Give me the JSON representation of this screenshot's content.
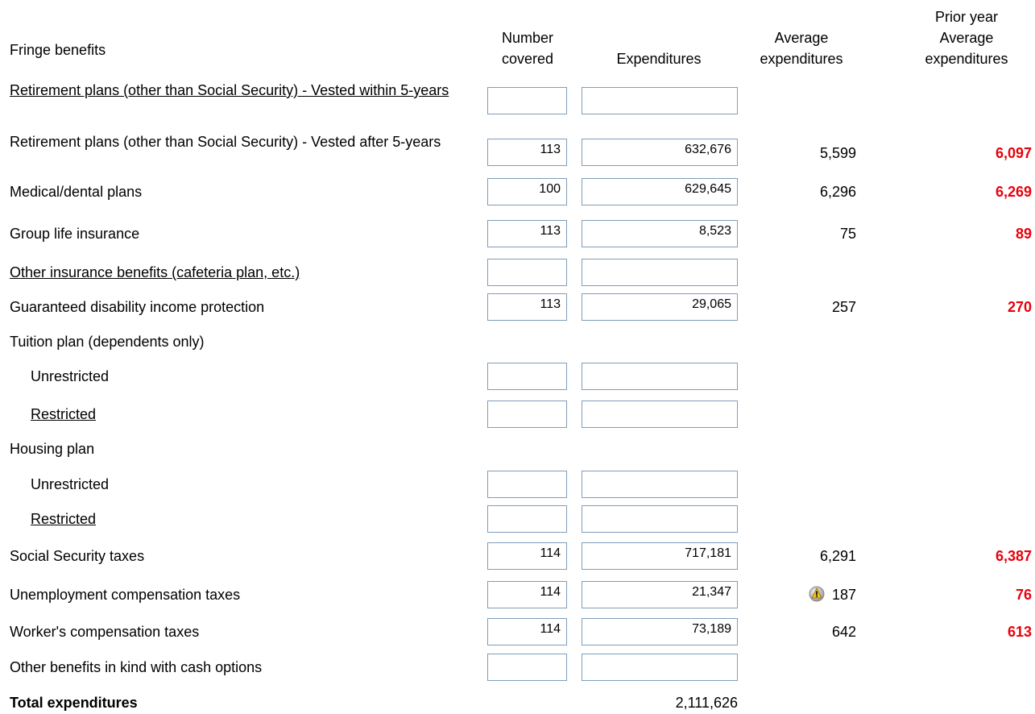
{
  "header": {
    "label": "Fringe benefits",
    "columns": [
      "Number covered",
      "Expenditures",
      "Average expenditures",
      "Prior year Average expenditures"
    ]
  },
  "rows": [
    {
      "label": "Retirement plans (other than Social Security) - Vested within 5-years"
    },
    {
      "label": "Retirement plans (other than Social Security) - Vested after 5-years",
      "number_covered": "113",
      "expenditures": "632,676",
      "average": "5,599",
      "prior_year": "6,097"
    },
    {
      "label": "Medical/dental plans",
      "number_covered": "100",
      "expenditures": "629,645",
      "average": "6,296",
      "prior_year": "6,269"
    },
    {
      "label": "Group life insurance",
      "number_covered": "113",
      "expenditures": "8,523",
      "average": "75",
      "prior_year": "89"
    },
    {
      "label": "Other insurance benefits (cafeteria plan, etc.)"
    },
    {
      "label": "Guaranteed disability income protection",
      "number_covered": "113",
      "expenditures": "29,065",
      "average": "257",
      "prior_year": "270"
    },
    {
      "label": "Tuition plan (dependents only)"
    },
    {
      "label": "Unrestricted"
    },
    {
      "label": "Restricted"
    },
    {
      "label": "Housing plan"
    },
    {
      "label": "Unrestricted"
    },
    {
      "label": "Restricted"
    },
    {
      "label": "Social Security taxes",
      "number_covered": "114",
      "expenditures": "717,181",
      "average": "6,291",
      "prior_year": "6,387"
    },
    {
      "label": "Unemployment compensation taxes",
      "number_covered": "114",
      "expenditures": "21,347",
      "average": "187",
      "prior_year": "76"
    },
    {
      "label": "Worker's compensation taxes",
      "number_covered": "114",
      "expenditures": "73,189",
      "average": "642",
      "prior_year": "613"
    },
    {
      "label": "Other benefits in kind with cash options"
    }
  ],
  "total": {
    "label": "Total expenditures",
    "expenditures": "2,111,626"
  }
}
